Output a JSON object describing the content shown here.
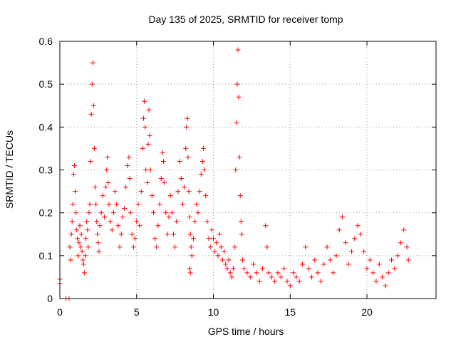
{
  "chart_data": {
    "type": "scatter",
    "title": "Day 135 of 2025, SRMTID for receiver tomp",
    "xlabel": "GPS time / hours",
    "ylabel": "SRMTID / TECUs",
    "xlim": [
      0,
      24.5
    ],
    "ylim": [
      0,
      0.6
    ],
    "xticks": [
      0,
      5,
      10,
      15,
      20
    ],
    "xtick_labels": [
      "0",
      "5",
      "10",
      "15",
      "20"
    ],
    "yticks": [
      0,
      0.1,
      0.2,
      0.3,
      0.4,
      0.5,
      0.6
    ],
    "ytick_labels": [
      "0",
      "0.1",
      "0.2",
      "0.3",
      "0.4",
      "0.5",
      "0.6"
    ],
    "grid": true,
    "series": [
      {
        "name": "SRMTID",
        "color": "#ff0000",
        "marker": "plus",
        "points": [
          [
            0.0,
            0.045
          ],
          [
            0.0,
            0.035
          ],
          [
            0.4,
            0.0
          ],
          [
            0.6,
            0.0
          ],
          [
            0.65,
            0.12
          ],
          [
            0.7,
            0.09
          ],
          [
            0.75,
            0.15
          ],
          [
            0.8,
            0.18
          ],
          [
            0.85,
            0.22
          ],
          [
            0.9,
            0.29
          ],
          [
            0.95,
            0.31
          ],
          [
            1.0,
            0.25
          ],
          [
            1.05,
            0.2
          ],
          [
            1.1,
            0.16
          ],
          [
            1.15,
            0.14
          ],
          [
            1.2,
            0.1
          ],
          [
            1.25,
            0.13
          ],
          [
            1.3,
            0.17
          ],
          [
            1.35,
            0.12
          ],
          [
            1.4,
            0.15
          ],
          [
            1.45,
            0.11
          ],
          [
            1.5,
            0.09
          ],
          [
            1.55,
            0.08
          ],
          [
            1.6,
            0.06
          ],
          [
            1.65,
            0.1
          ],
          [
            1.7,
            0.14
          ],
          [
            1.75,
            0.18
          ],
          [
            1.8,
            0.16
          ],
          [
            1.85,
            0.12
          ],
          [
            1.9,
            0.2
          ],
          [
            1.95,
            0.22
          ],
          [
            2.0,
            0.32
          ],
          [
            2.05,
            0.43
          ],
          [
            2.1,
            0.5
          ],
          [
            2.15,
            0.55
          ],
          [
            2.2,
            0.45
          ],
          [
            2.25,
            0.35
          ],
          [
            2.3,
            0.26
          ],
          [
            2.35,
            0.22
          ],
          [
            2.4,
            0.18
          ],
          [
            2.45,
            0.15
          ],
          [
            2.5,
            0.13
          ],
          [
            2.55,
            0.11
          ],
          [
            2.6,
            0.17
          ],
          [
            2.7,
            0.2
          ],
          [
            2.8,
            0.24
          ],
          [
            2.9,
            0.19
          ],
          [
            3.0,
            0.26
          ],
          [
            3.05,
            0.3
          ],
          [
            3.1,
            0.33
          ],
          [
            3.15,
            0.27
          ],
          [
            3.2,
            0.22
          ],
          [
            3.3,
            0.18
          ],
          [
            3.4,
            0.16
          ],
          [
            3.5,
            0.2
          ],
          [
            3.6,
            0.25
          ],
          [
            3.7,
            0.22
          ],
          [
            3.8,
            0.17
          ],
          [
            3.9,
            0.12
          ],
          [
            4.0,
            0.15
          ],
          [
            4.1,
            0.19
          ],
          [
            4.2,
            0.21
          ],
          [
            4.3,
            0.26
          ],
          [
            4.4,
            0.31
          ],
          [
            4.5,
            0.33
          ],
          [
            4.55,
            0.28
          ],
          [
            4.6,
            0.2
          ],
          [
            4.7,
            0.15
          ],
          [
            4.8,
            0.12
          ],
          [
            4.9,
            0.14
          ],
          [
            5.0,
            0.18
          ],
          [
            5.1,
            0.22
          ],
          [
            5.2,
            0.17
          ],
          [
            5.3,
            0.25
          ],
          [
            5.4,
            0.35
          ],
          [
            5.45,
            0.42
          ],
          [
            5.5,
            0.46
          ],
          [
            5.55,
            0.4
          ],
          [
            5.6,
            0.3
          ],
          [
            5.7,
            0.27
          ],
          [
            5.75,
            0.36
          ],
          [
            5.8,
            0.44
          ],
          [
            5.85,
            0.38
          ],
          [
            5.9,
            0.3
          ],
          [
            6.0,
            0.24
          ],
          [
            6.1,
            0.2
          ],
          [
            6.2,
            0.14
          ],
          [
            6.3,
            0.12
          ],
          [
            6.4,
            0.17
          ],
          [
            6.5,
            0.22
          ],
          [
            6.6,
            0.28
          ],
          [
            6.7,
            0.34
          ],
          [
            6.75,
            0.32
          ],
          [
            6.8,
            0.27
          ],
          [
            6.9,
            0.2
          ],
          [
            7.0,
            0.15
          ],
          [
            7.1,
            0.19
          ],
          [
            7.2,
            0.24
          ],
          [
            7.3,
            0.2
          ],
          [
            7.4,
            0.15
          ],
          [
            7.5,
            0.12
          ],
          [
            7.6,
            0.18
          ],
          [
            7.7,
            0.25
          ],
          [
            7.8,
            0.32
          ],
          [
            7.9,
            0.28
          ],
          [
            8.0,
            0.22
          ],
          [
            8.1,
            0.26
          ],
          [
            8.2,
            0.35
          ],
          [
            8.25,
            0.4
          ],
          [
            8.3,
            0.42
          ],
          [
            8.35,
            0.33
          ],
          [
            8.4,
            0.25
          ],
          [
            8.45,
            0.19
          ],
          [
            8.5,
            0.15
          ],
          [
            8.55,
            0.12
          ],
          [
            8.45,
            0.07
          ],
          [
            8.5,
            0.06
          ],
          [
            8.6,
            0.1
          ],
          [
            8.7,
            0.14
          ],
          [
            8.8,
            0.18
          ],
          [
            8.9,
            0.22
          ],
          [
            9.0,
            0.2
          ],
          [
            9.1,
            0.25
          ],
          [
            9.2,
            0.29
          ],
          [
            9.3,
            0.32
          ],
          [
            9.35,
            0.35
          ],
          [
            9.4,
            0.3
          ],
          [
            9.5,
            0.24
          ],
          [
            9.6,
            0.18
          ],
          [
            9.7,
            0.14
          ],
          [
            9.8,
            0.12
          ],
          [
            9.9,
            0.16
          ],
          [
            10.0,
            0.14
          ],
          [
            10.1,
            0.11
          ],
          [
            10.2,
            0.13
          ],
          [
            10.3,
            0.1
          ],
          [
            10.4,
            0.15
          ],
          [
            10.5,
            0.12
          ],
          [
            10.6,
            0.09
          ],
          [
            10.7,
            0.11
          ],
          [
            10.8,
            0.08
          ],
          [
            10.9,
            0.07
          ],
          [
            11.0,
            0.09
          ],
          [
            11.1,
            0.06
          ],
          [
            11.2,
            0.05
          ],
          [
            11.3,
            0.07
          ],
          [
            11.4,
            0.12
          ],
          [
            11.45,
            0.3
          ],
          [
            11.5,
            0.41
          ],
          [
            11.55,
            0.5
          ],
          [
            11.6,
            0.58
          ],
          [
            11.65,
            0.47
          ],
          [
            11.7,
            0.33
          ],
          [
            11.75,
            0.24
          ],
          [
            11.8,
            0.18
          ],
          [
            11.85,
            0.15
          ],
          [
            11.9,
            0.09
          ],
          [
            12.0,
            0.07
          ],
          [
            12.2,
            0.06
          ],
          [
            12.4,
            0.05
          ],
          [
            12.6,
            0.08
          ],
          [
            12.8,
            0.06
          ],
          [
            13.0,
            0.04
          ],
          [
            13.2,
            0.07
          ],
          [
            13.4,
            0.17
          ],
          [
            13.5,
            0.12
          ],
          [
            13.6,
            0.06
          ],
          [
            13.8,
            0.05
          ],
          [
            14.0,
            0.04
          ],
          [
            14.2,
            0.06
          ],
          [
            14.4,
            0.05
          ],
          [
            14.6,
            0.07
          ],
          [
            14.8,
            0.04
          ],
          [
            15.0,
            0.03
          ],
          [
            15.2,
            0.06
          ],
          [
            15.4,
            0.05
          ],
          [
            15.6,
            0.04
          ],
          [
            15.8,
            0.08
          ],
          [
            16.0,
            0.12
          ],
          [
            16.2,
            0.07
          ],
          [
            16.4,
            0.05
          ],
          [
            16.6,
            0.09
          ],
          [
            16.8,
            0.06
          ],
          [
            17.0,
            0.04
          ],
          [
            17.2,
            0.08
          ],
          [
            17.4,
            0.12
          ],
          [
            17.6,
            0.09
          ],
          [
            17.8,
            0.06
          ],
          [
            18.0,
            0.1
          ],
          [
            18.2,
            0.16
          ],
          [
            18.4,
            0.19
          ],
          [
            18.6,
            0.13
          ],
          [
            18.8,
            0.08
          ],
          [
            19.0,
            0.11
          ],
          [
            19.2,
            0.14
          ],
          [
            19.4,
            0.17
          ],
          [
            19.6,
            0.15
          ],
          [
            19.8,
            0.11
          ],
          [
            20.0,
            0.07
          ],
          [
            20.2,
            0.09
          ],
          [
            20.4,
            0.06
          ],
          [
            20.6,
            0.04
          ],
          [
            20.8,
            0.08
          ],
          [
            21.0,
            0.05
          ],
          [
            21.2,
            0.03
          ],
          [
            21.4,
            0.06
          ],
          [
            21.6,
            0.09
          ],
          [
            21.8,
            0.07
          ],
          [
            22.0,
            0.1
          ],
          [
            22.2,
            0.13
          ],
          [
            22.4,
            0.16
          ],
          [
            22.6,
            0.12
          ],
          [
            22.7,
            0.09
          ]
        ]
      }
    ]
  }
}
